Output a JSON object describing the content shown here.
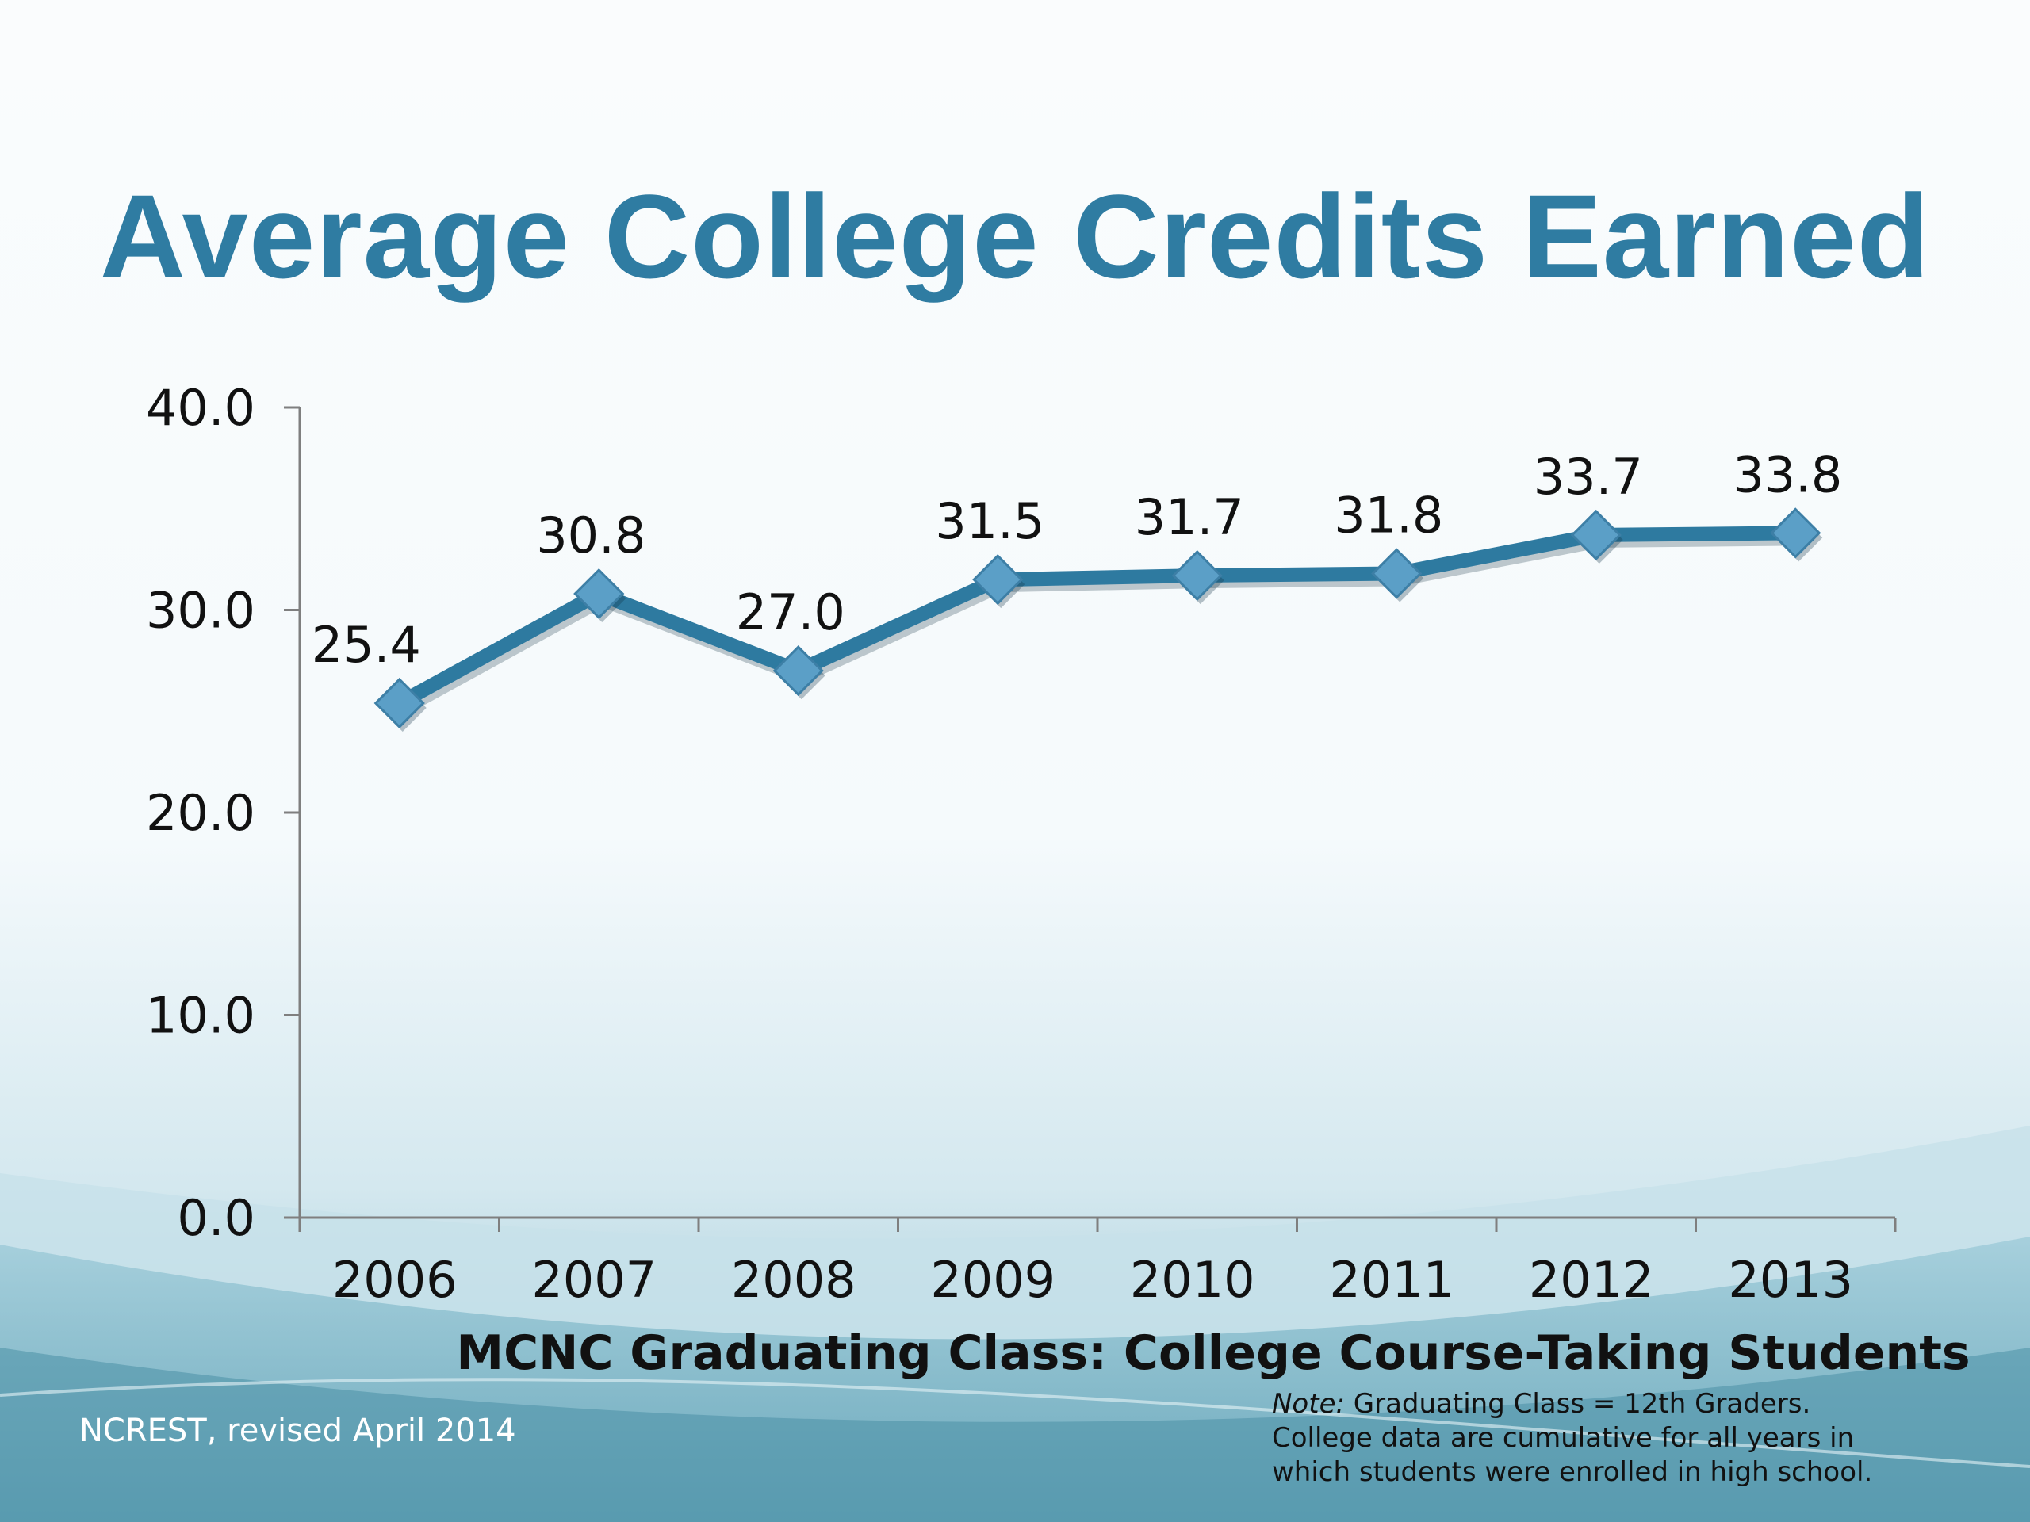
{
  "slide": {
    "title": "Average College Credits Earned",
    "source": "NCREST, revised April 2014",
    "note": {
      "label": "Note:",
      "lines": [
        "Graduating Class = 12th Graders.",
        "College data are cumulative for all years in",
        "which students were enrolled in high school."
      ]
    }
  },
  "colors": {
    "title": "#2f7ca2",
    "line": "#2e7aa0",
    "marker": "#5b9fc7",
    "axis": "#7f7f7f"
  },
  "chart_data": {
    "type": "line",
    "title": "Average College Credits Earned",
    "xlabel": "MCNC Graduating Class: College Course-Taking Students",
    "ylabel": "",
    "categories": [
      "2006",
      "2007",
      "2008",
      "2009",
      "2010",
      "2011",
      "2012",
      "2013"
    ],
    "values": [
      25.4,
      30.8,
      27.0,
      31.5,
      31.7,
      31.8,
      33.7,
      33.8
    ],
    "data_labels": [
      "25.4",
      "30.8",
      "27.0",
      "31.5",
      "31.7",
      "31.8",
      "33.7",
      "33.8"
    ],
    "ylim": [
      0,
      40
    ],
    "y_ticks": [
      "0.0",
      "10.0",
      "20.0",
      "30.0",
      "40.0"
    ],
    "marker": "diamond",
    "grid": false,
    "legend": "none"
  }
}
